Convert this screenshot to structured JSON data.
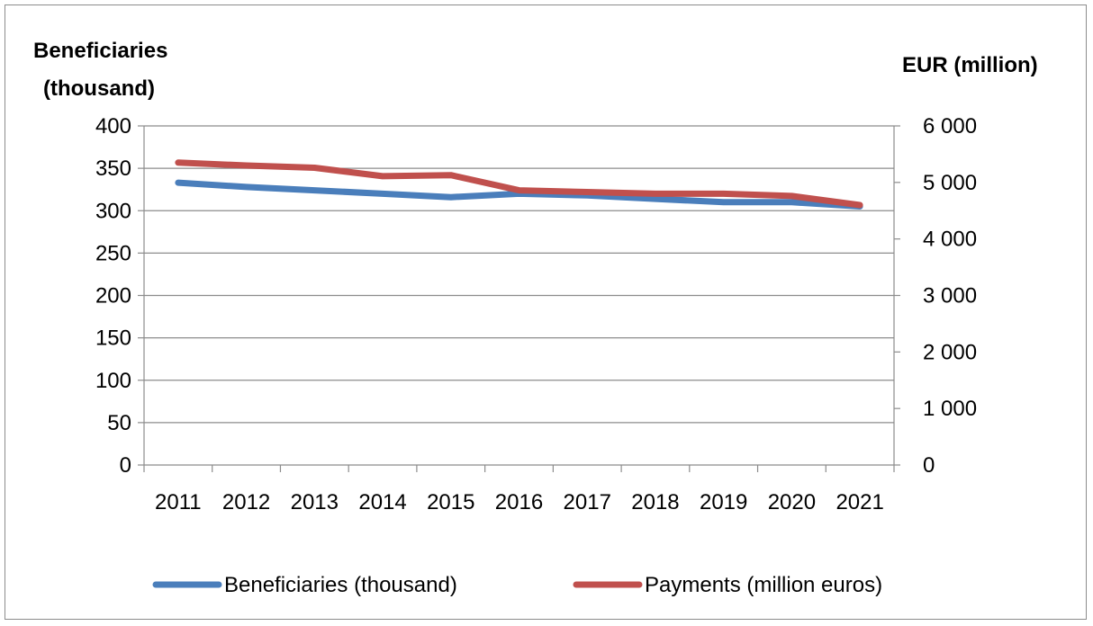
{
  "chart_data": {
    "type": "line",
    "categories": [
      "2011",
      "2012",
      "2013",
      "2014",
      "2015",
      "2016",
      "2017",
      "2018",
      "2019",
      "2020",
      "2021"
    ],
    "y_left": {
      "label_lines": [
        "Beneficiaries",
        "(thousand)"
      ],
      "ticks": [
        "0",
        "50",
        "100",
        "150",
        "200",
        "250",
        "300",
        "350",
        "400"
      ],
      "ylim": [
        0,
        400
      ]
    },
    "y_right": {
      "label": "EUR (million)",
      "ticks": [
        "0",
        "1 000",
        "2 000",
        "3 000",
        "4 000",
        "5 000",
        "6 000"
      ],
      "ylim": [
        0,
        6000
      ]
    },
    "grid": true,
    "legend_position": "bottom",
    "series": [
      {
        "name": "Beneficiaries (thousand)",
        "axis": "left",
        "color": "#4a7ebb",
        "values": [
          333,
          328,
          324,
          320,
          316,
          320,
          318,
          314,
          310,
          310,
          305
        ]
      },
      {
        "name": "Payments (million euros)",
        "axis": "right",
        "color": "#c0504d",
        "values": [
          5350,
          5300,
          5260,
          5110,
          5130,
          4860,
          4830,
          4800,
          4800,
          4760,
          4600
        ]
      }
    ]
  }
}
